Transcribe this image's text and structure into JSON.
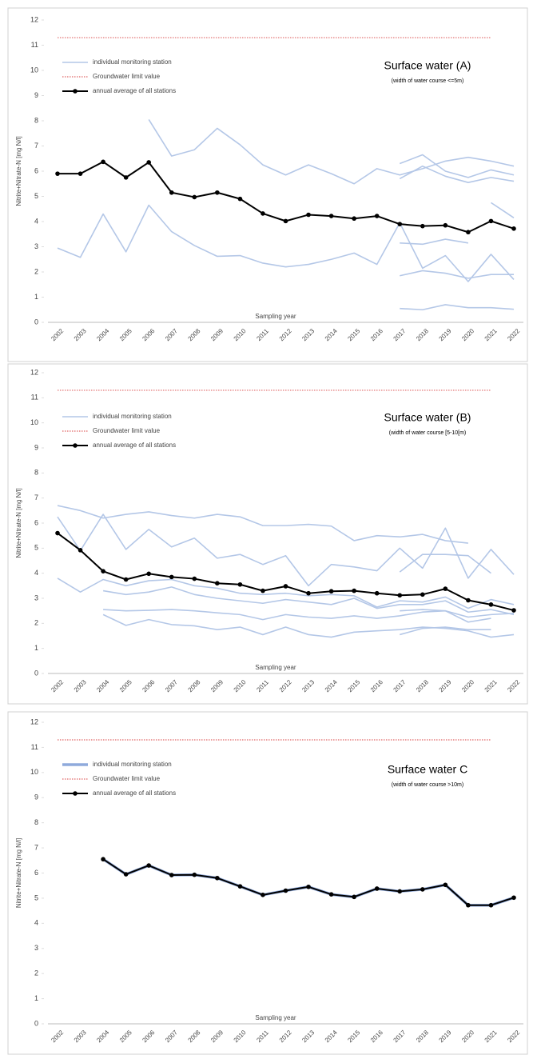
{
  "chart_data": [
    {
      "type": "line",
      "title": "Surface water (A)",
      "subtitle": "(width of water course <=5m)",
      "y_label": "Nitrite+Nitrate-N [mg N/l]",
      "x_label": "Sampling year",
      "categories": [
        "2002",
        "2003",
        "2004",
        "2005",
        "2006",
        "2007",
        "2008",
        "2009",
        "2010",
        "2011",
        "2012",
        "2013",
        "2014",
        "2015",
        "2016",
        "2017",
        "2018",
        "2019",
        "2020",
        "2021",
        "2022"
      ],
      "ylim": [
        0,
        12
      ],
      "yticks": [
        0,
        1,
        2,
        3,
        4,
        5,
        6,
        7,
        8,
        9,
        10,
        11,
        12
      ],
      "series": [
        {
          "name": "individual monitoring station",
          "color": "#b4c7e7",
          "values": [
            null,
            null,
            null,
            null,
            8.05,
            6.6,
            6.85,
            7.7,
            7.05,
            6.25,
            5.85,
            6.25,
            5.9,
            5.5,
            6.1,
            5.85,
            6.1,
            6.4,
            6.55,
            6.4,
            6.2
          ]
        },
        {
          "color": "#b4c7e7",
          "values": [
            2.95,
            2.58,
            4.3,
            2.8,
            4.65,
            3.6,
            3.05,
            2.62,
            2.65,
            2.35,
            2.2,
            2.3,
            2.5,
            2.75,
            2.3,
            3.95,
            2.15,
            2.65,
            1.62,
            2.7,
            1.7
          ]
        },
        {
          "color": "#b4c7e7",
          "values": [
            null,
            null,
            null,
            null,
            null,
            null,
            null,
            null,
            null,
            null,
            null,
            null,
            null,
            null,
            null,
            6.3,
            6.65,
            6.0,
            5.75,
            6.05,
            5.85
          ]
        },
        {
          "color": "#b4c7e7",
          "values": [
            null,
            null,
            null,
            null,
            null,
            null,
            null,
            null,
            null,
            null,
            null,
            null,
            null,
            null,
            null,
            5.7,
            6.2,
            5.8,
            5.55,
            5.75,
            5.6
          ]
        },
        {
          "color": "#b4c7e7",
          "values": [
            null,
            null,
            null,
            null,
            null,
            null,
            null,
            null,
            null,
            null,
            null,
            null,
            null,
            null,
            null,
            3.15,
            3.1,
            3.3,
            3.15,
            null,
            null
          ]
        },
        {
          "color": "#b4c7e7",
          "values": [
            null,
            null,
            null,
            null,
            null,
            null,
            null,
            null,
            null,
            null,
            null,
            null,
            null,
            null,
            null,
            1.85,
            2.05,
            1.95,
            1.75,
            1.9,
            1.9
          ]
        },
        {
          "color": "#b4c7e7",
          "values": [
            null,
            null,
            null,
            null,
            null,
            null,
            null,
            null,
            null,
            null,
            null,
            null,
            null,
            null,
            null,
            0.55,
            0.5,
            0.7,
            0.58,
            0.58,
            0.52
          ]
        },
        {
          "color": "#b4c7e7",
          "values": [
            null,
            null,
            null,
            null,
            null,
            null,
            null,
            null,
            null,
            null,
            null,
            null,
            null,
            null,
            null,
            null,
            null,
            null,
            null,
            4.75,
            4.15
          ]
        },
        {
          "name": "Groundwater limit value",
          "color": "#e06666",
          "dotted": true,
          "values": [
            11.3,
            11.3,
            11.3,
            11.3,
            11.3,
            11.3,
            11.3,
            11.3,
            11.3,
            11.3,
            11.3,
            11.3,
            11.3,
            11.3,
            11.3,
            11.3,
            11.3,
            11.3,
            11.3,
            11.3,
            null
          ]
        },
        {
          "name": "annual average of all stations",
          "color": "#000000",
          "markers": true,
          "values": [
            5.9,
            5.9,
            6.37,
            5.75,
            6.35,
            5.15,
            4.97,
            5.15,
            4.9,
            4.32,
            4.02,
            4.27,
            4.22,
            4.12,
            4.22,
            3.9,
            3.82,
            3.85,
            3.58,
            4.02,
            3.72
          ]
        }
      ]
    },
    {
      "type": "line",
      "title": "Surface water (B)",
      "subtitle": "(width of water course [5-10[m)",
      "y_label": "Nitrite+Nitrate-N [mg N/l]",
      "x_label": "Sampling year",
      "categories": [
        "2002",
        "2003",
        "2004",
        "2005",
        "2006",
        "2007",
        "2008",
        "2009",
        "2010",
        "2011",
        "2012",
        "2013",
        "2014",
        "2015",
        "2016",
        "2017",
        "2018",
        "2019",
        "2020",
        "2021",
        "2022"
      ],
      "ylim": [
        0,
        12
      ],
      "yticks": [
        0,
        1,
        2,
        3,
        4,
        5,
        6,
        7,
        8,
        9,
        10,
        11,
        12
      ],
      "series": [
        {
          "name": "individual monitoring station",
          "color": "#b4c7e7",
          "values": [
            6.7,
            6.5,
            6.2,
            6.35,
            6.45,
            6.3,
            6.2,
            6.35,
            6.25,
            5.9,
            5.9,
            5.95,
            5.88,
            5.3,
            5.5,
            5.45,
            5.55,
            5.3,
            5.2,
            null,
            null
          ]
        },
        {
          "color": "#b4c7e7",
          "values": [
            6.25,
            4.9,
            6.35,
            4.95,
            5.75,
            5.05,
            5.4,
            4.6,
            4.75,
            4.35,
            4.7,
            3.5,
            4.35,
            4.25,
            4.1,
            5.0,
            4.2,
            5.8,
            3.8,
            4.95,
            3.95
          ]
        },
        {
          "color": "#b4c7e7",
          "values": [
            3.8,
            3.25,
            3.75,
            3.5,
            3.7,
            3.75,
            3.5,
            3.4,
            3.2,
            3.15,
            3.2,
            3.1,
            3.15,
            3.1,
            2.65,
            2.9,
            2.85,
            3.05,
            2.6,
            2.95,
            2.75
          ]
        },
        {
          "color": "#b4c7e7",
          "values": [
            null,
            null,
            3.3,
            3.15,
            3.25,
            3.45,
            3.15,
            3.0,
            2.9,
            2.8,
            2.95,
            2.85,
            2.75,
            3.0,
            2.6,
            2.75,
            2.75,
            2.9,
            2.45,
            2.55,
            2.35
          ]
        },
        {
          "color": "#b4c7e7",
          "values": [
            null,
            null,
            2.55,
            2.5,
            2.52,
            2.55,
            2.5,
            2.42,
            2.35,
            2.15,
            2.35,
            2.25,
            2.2,
            2.3,
            2.2,
            2.3,
            2.45,
            2.5,
            2.25,
            2.35,
            2.4
          ]
        },
        {
          "color": "#b4c7e7",
          "values": [
            null,
            null,
            2.35,
            1.92,
            2.15,
            1.95,
            1.9,
            1.75,
            1.85,
            1.55,
            1.85,
            1.55,
            1.45,
            1.65,
            1.7,
            1.75,
            1.85,
            1.8,
            1.7,
            1.45,
            1.55
          ]
        },
        {
          "color": "#b4c7e7",
          "values": [
            null,
            null,
            null,
            null,
            null,
            null,
            null,
            null,
            null,
            null,
            null,
            null,
            null,
            null,
            null,
            4.05,
            4.75,
            4.75,
            4.7,
            4.0,
            null
          ]
        },
        {
          "color": "#b4c7e7",
          "values": [
            null,
            null,
            null,
            null,
            null,
            null,
            null,
            null,
            null,
            null,
            null,
            null,
            null,
            null,
            null,
            2.5,
            2.55,
            2.5,
            2.05,
            2.2,
            null
          ]
        },
        {
          "color": "#b4c7e7",
          "values": [
            null,
            null,
            null,
            null,
            null,
            null,
            null,
            null,
            null,
            null,
            null,
            null,
            null,
            null,
            null,
            1.55,
            1.8,
            1.85,
            1.75,
            1.75,
            null
          ]
        },
        {
          "name": "Groundwater limit value",
          "color": "#e06666",
          "dotted": true,
          "values": [
            11.3,
            11.3,
            11.3,
            11.3,
            11.3,
            11.3,
            11.3,
            11.3,
            11.3,
            11.3,
            11.3,
            11.3,
            11.3,
            11.3,
            11.3,
            11.3,
            11.3,
            11.3,
            11.3,
            11.3,
            null
          ]
        },
        {
          "name": "annual average of all stations",
          "color": "#000000",
          "markers": true,
          "values": [
            5.6,
            4.92,
            4.08,
            3.75,
            3.98,
            3.85,
            3.78,
            3.6,
            3.55,
            3.3,
            3.48,
            3.2,
            3.28,
            3.3,
            3.2,
            3.12,
            3.15,
            3.38,
            2.92,
            2.75,
            2.52
          ]
        }
      ]
    },
    {
      "type": "line",
      "title": "Surface water C",
      "subtitle": "(width of water course >10m)",
      "y_label": "Nitrite+Nitrate-N [mg N/l]",
      "x_label": "Sampling year",
      "categories": [
        "2002",
        "2003",
        "2004",
        "2005",
        "2006",
        "2007",
        "2008",
        "2009",
        "2010",
        "2011",
        "2012",
        "2013",
        "2014",
        "2015",
        "2016",
        "2017",
        "2018",
        "2019",
        "2020",
        "2021",
        "2022"
      ],
      "ylim": [
        0,
        12
      ],
      "yticks": [
        0,
        1,
        2,
        3,
        4,
        5,
        6,
        7,
        8,
        9,
        10,
        11,
        12
      ],
      "series": [
        {
          "name": "individual monitoring station",
          "color": "#8faadc",
          "thick": true,
          "values": [
            null,
            null,
            6.55,
            5.95,
            6.3,
            5.92,
            5.93,
            5.8,
            5.47,
            5.13,
            5.3,
            5.45,
            5.15,
            5.05,
            5.38,
            5.27,
            5.35,
            5.53,
            4.72,
            4.72,
            5.02
          ]
        },
        {
          "name": "Groundwater limit value",
          "color": "#e06666",
          "dotted": true,
          "values": [
            11.3,
            11.3,
            11.3,
            11.3,
            11.3,
            11.3,
            11.3,
            11.3,
            11.3,
            11.3,
            11.3,
            11.3,
            11.3,
            11.3,
            11.3,
            11.3,
            11.3,
            11.3,
            11.3,
            11.3,
            null
          ]
        },
        {
          "name": "annual average of all stations",
          "color": "#000000",
          "markers": true,
          "values": [
            null,
            null,
            6.55,
            5.95,
            6.3,
            5.92,
            5.93,
            5.8,
            5.47,
            5.13,
            5.3,
            5.45,
            5.15,
            5.05,
            5.38,
            5.27,
            5.35,
            5.53,
            4.72,
            4.72,
            5.02
          ]
        }
      ]
    }
  ]
}
